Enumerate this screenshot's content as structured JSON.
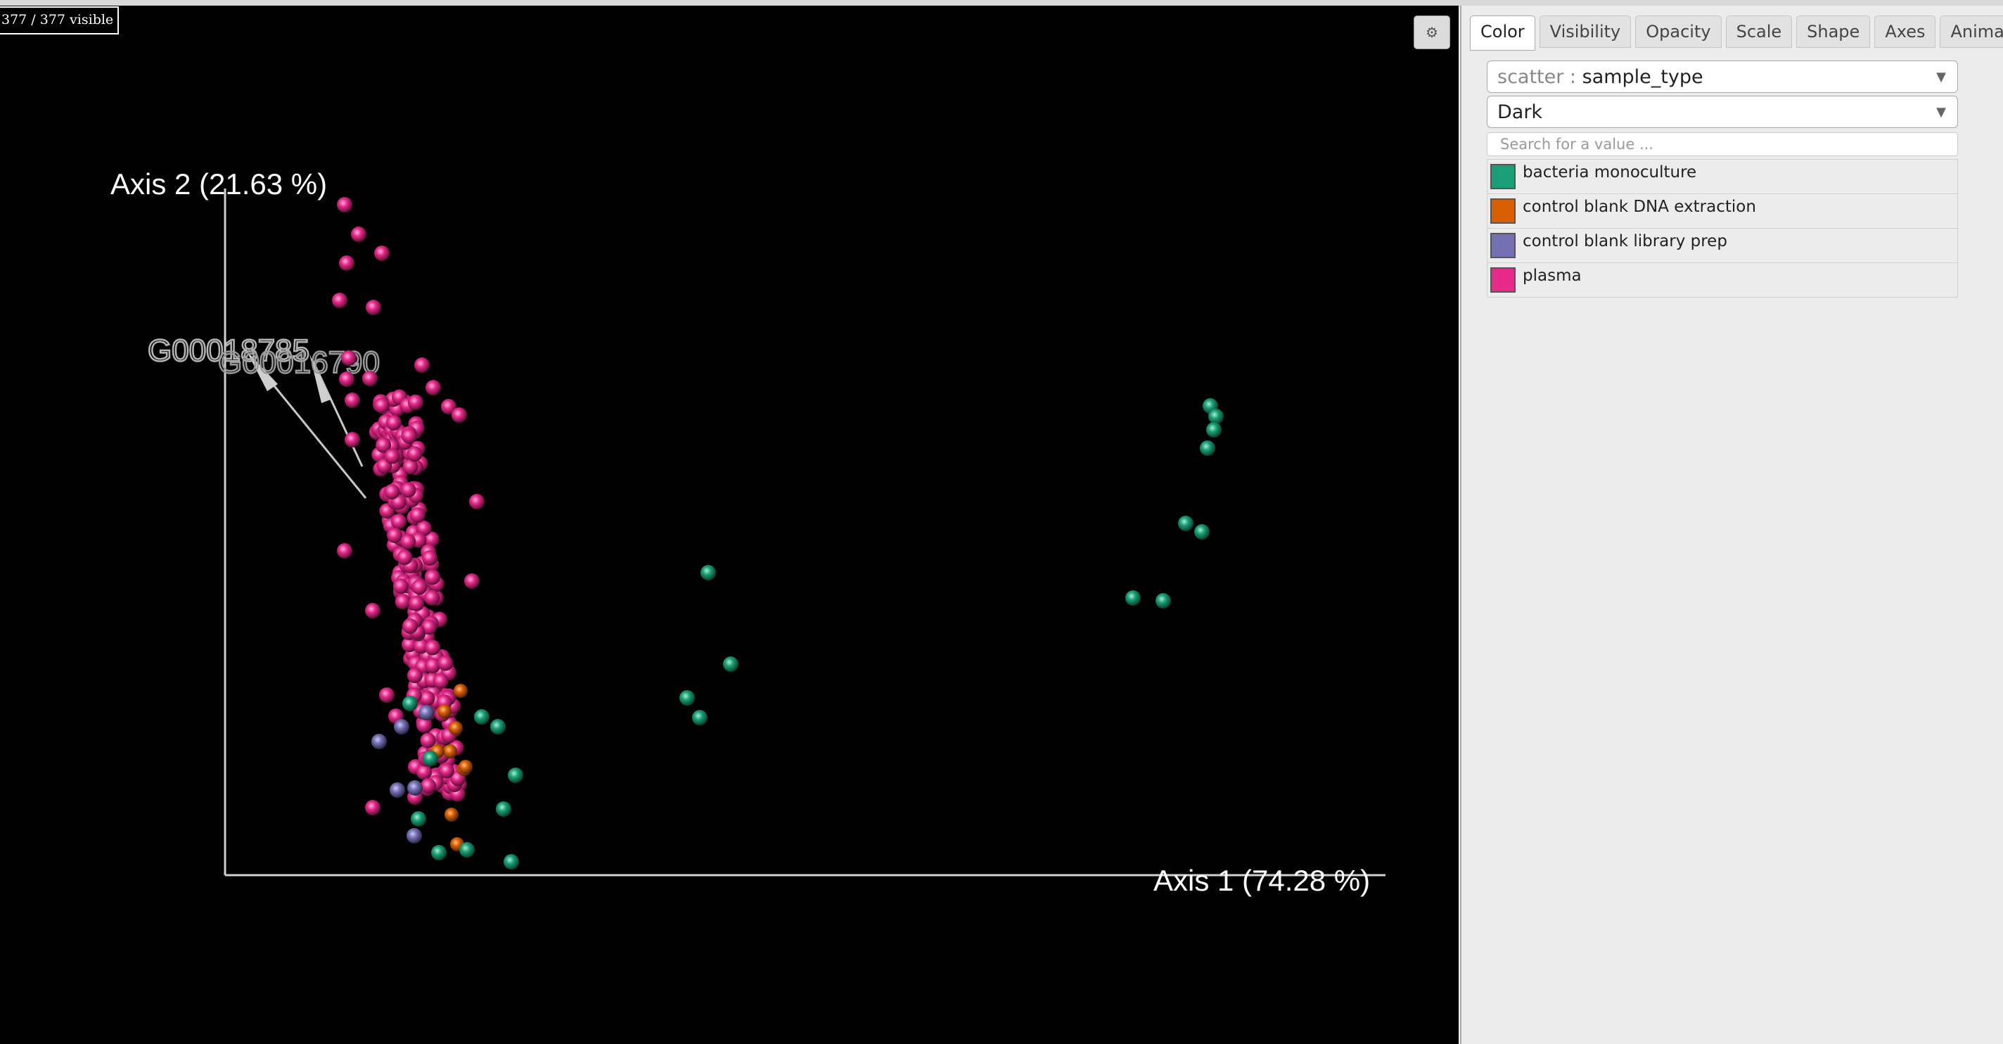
{
  "visibility_counter": "377 / 377 visible",
  "gear_icon": "gear-icon",
  "tabs": [
    {
      "label": "Color",
      "active": true
    },
    {
      "label": "Visibility",
      "active": false
    },
    {
      "label": "Opacity",
      "active": false
    },
    {
      "label": "Scale",
      "active": false
    },
    {
      "label": "Shape",
      "active": false
    },
    {
      "label": "Axes",
      "active": false
    },
    {
      "label": "Animations",
      "active": false
    }
  ],
  "color_panel": {
    "category_prefix": "scatter :",
    "category_value": "sample_type",
    "colormap_value": "Dark",
    "search_placeholder": "Search for a value ...",
    "legend": [
      {
        "label": "bacteria monoculture",
        "color": "#1b9e77"
      },
      {
        "label": "control blank DNA extraction",
        "color": "#d95f02"
      },
      {
        "label": "control blank library prep",
        "color": "#7570b3"
      },
      {
        "label": "plasma",
        "color": "#e7298a"
      }
    ]
  },
  "plot": {
    "background": "#000000",
    "axis1_label": "Axis 1 (74.28 %)",
    "axis2_label": "Axis 2 (21.63 %)",
    "arrow_label_1": "G00018785",
    "arrow_label_2": "G00016790"
  }
}
